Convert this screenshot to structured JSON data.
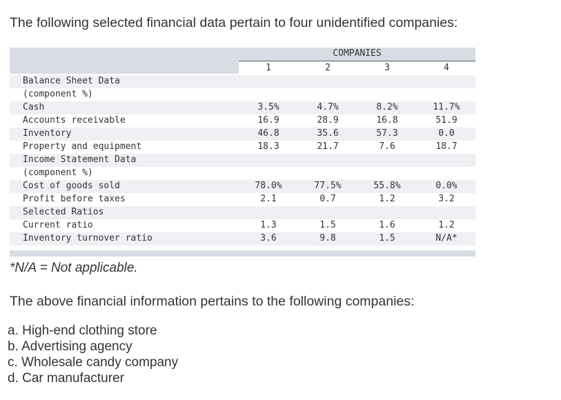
{
  "intro": "The following selected financial data pertain to four unidentified companies:",
  "table": {
    "group_header": "COMPANIES",
    "columns": [
      "1",
      "2",
      "3",
      "4"
    ],
    "rows": [
      {
        "label": "Balance Sheet Data",
        "values": [
          "",
          "",
          "",
          ""
        ]
      },
      {
        "label": "(component %)",
        "values": [
          "",
          "",
          "",
          ""
        ]
      },
      {
        "label": "Cash",
        "values": [
          "3.5%",
          "4.7%",
          "8.2%",
          "11.7%"
        ]
      },
      {
        "label": "Accounts receivable",
        "values": [
          "16.9",
          "28.9",
          "16.8",
          "51.9"
        ]
      },
      {
        "label": "Inventory",
        "values": [
          "46.8",
          "35.6",
          "57.3",
          "0.0"
        ]
      },
      {
        "label": "Property and equipment",
        "values": [
          "18.3",
          "21.7",
          "7.6",
          "18.7"
        ]
      },
      {
        "label": "Income Statement Data",
        "values": [
          "",
          "",
          "",
          ""
        ]
      },
      {
        "label": "(component %)",
        "values": [
          "",
          "",
          "",
          ""
        ]
      },
      {
        "label": "Cost of goods sold",
        "values": [
          "78.0%",
          "77.5%",
          "55.8%",
          "0.0%"
        ]
      },
      {
        "label": "Profit before taxes",
        "values": [
          "2.1",
          "0.7",
          "1.2",
          "3.2"
        ]
      },
      {
        "label": "Selected Ratios",
        "values": [
          "",
          "",
          "",
          ""
        ]
      },
      {
        "label": "Current ratio",
        "values": [
          "1.3",
          "1.5",
          "1.6",
          "1.2"
        ]
      },
      {
        "label": "Inventory turnover ratio",
        "values": [
          "3.6",
          "9.8",
          "1.5",
          "N/A*"
        ]
      }
    ]
  },
  "footnote": "*N/A = Not applicable.",
  "description": "The above financial information pertains to the following companies:",
  "options": [
    "a. High-end clothing store",
    "b. Advertising agency",
    "c. Wholesale candy company",
    "d. Car manufacturer"
  ]
}
